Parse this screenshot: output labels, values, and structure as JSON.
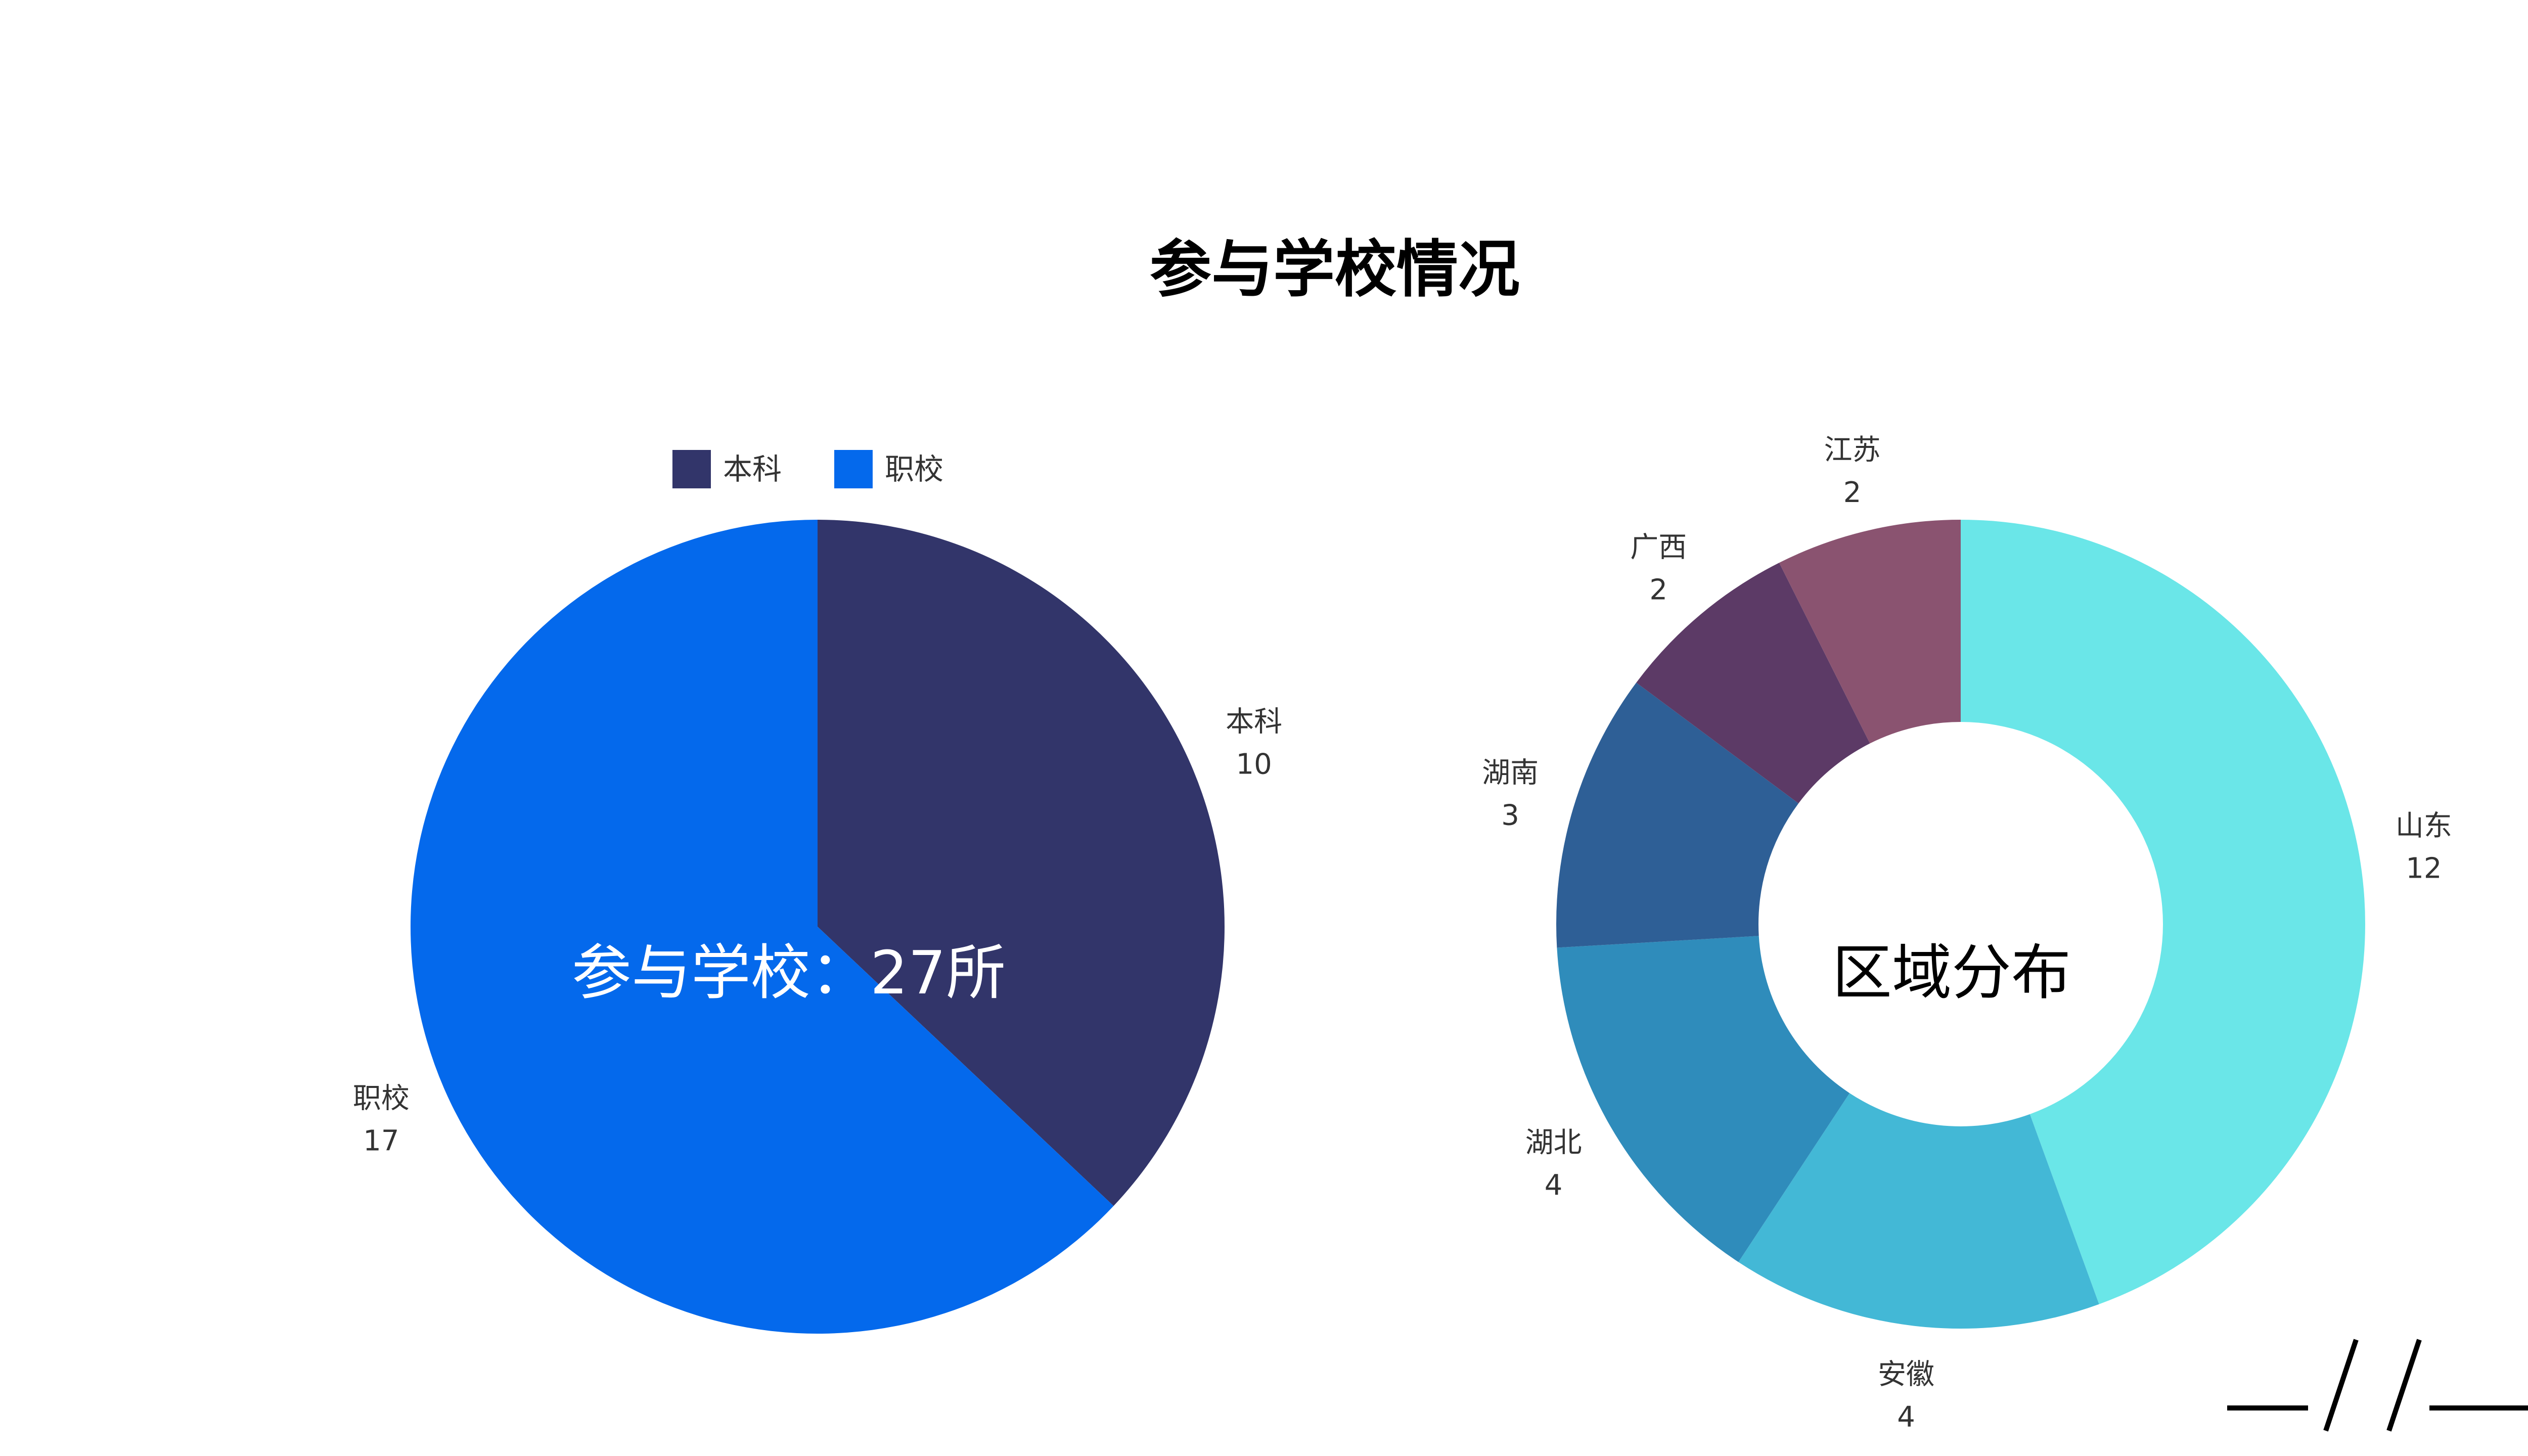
{
  "title": "参与学校情况",
  "colors": {
    "background": "#ffffff",
    "text": "#000000",
    "label_text": "#333333",
    "deco_line": "#000000"
  },
  "decoration": {
    "icon": "corner-slash-decoration-icon"
  },
  "chart_data": [
    {
      "type": "pie",
      "legend": {
        "placement": "top-center",
        "entries": [
          "本科",
          "职校"
        ]
      },
      "center_text": "参与学校：27所",
      "categories": [
        "本科",
        "职校"
      ],
      "values": [
        10,
        17
      ],
      "colors": [
        "#32356a",
        "#0469ec"
      ],
      "start_angle_deg": 0,
      "direction": "clockwise"
    },
    {
      "type": "pie",
      "variant": "donut",
      "center_text": "区域分布",
      "categories": [
        "山东",
        "安徽",
        "湖北",
        "湖南",
        "广西",
        "江苏"
      ],
      "values": [
        12,
        4,
        4,
        3,
        2,
        2
      ],
      "colors": [
        "#6ae6e8",
        "#43b8d6",
        "#2f8cbb",
        "#2e5f96",
        "#5c3a66",
        "#8a5370"
      ],
      "start_angle_deg": 0,
      "direction": "clockwise"
    }
  ]
}
